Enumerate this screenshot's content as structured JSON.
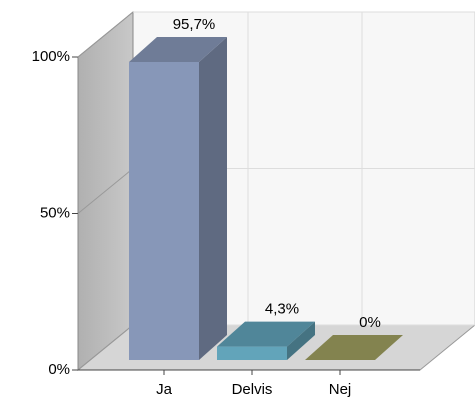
{
  "chart_data": {
    "type": "bar3d",
    "categories": [
      "Ja",
      "Delvis",
      "Nej"
    ],
    "values": [
      95.7,
      4.3,
      0
    ],
    "value_labels": [
      "95,7%",
      "4,3%",
      "0%"
    ],
    "colors": [
      "#8797b8",
      "#62a4ba",
      "#a0a060"
    ],
    "ylim": [
      0,
      100
    ],
    "yticks": [
      {
        "value": 0,
        "label": "0%"
      },
      {
        "value": 50,
        "label": "50%"
      },
      {
        "value": 100,
        "label": "100%"
      }
    ],
    "grid": true
  }
}
